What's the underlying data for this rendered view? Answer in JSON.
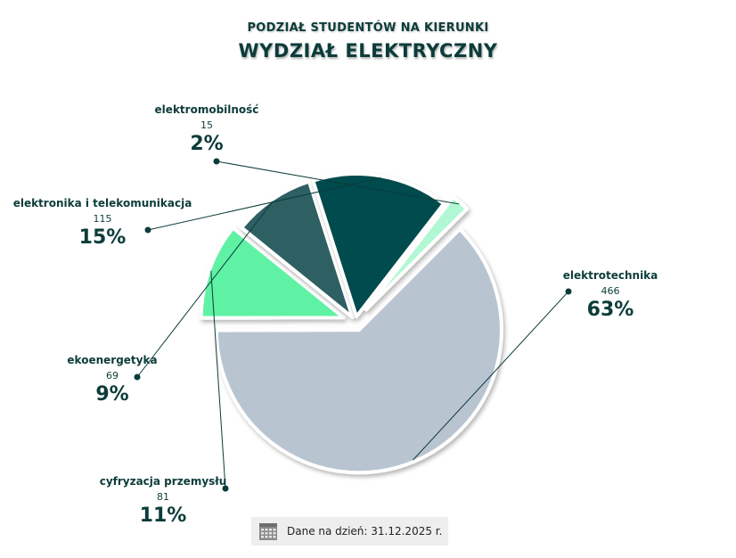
{
  "title_line1": "PODZIAŁ STUDENTÓW NA KIERUNKI",
  "title_line2": "WYDZIAŁ ELEKTRYCZNY",
  "footnote": {
    "icon": "calendar-icon",
    "text": "Dane na dzień: 31.12.2025 r."
  },
  "chart_data": {
    "type": "pie",
    "title": "PODZIAŁ STUDENTÓW NA KIERUNKI",
    "subtitle": "WYDZIAŁ ELEKTRYCZNY",
    "exploded": true,
    "slices": [
      {
        "label": "elektrotechnika",
        "value": 466,
        "percent": "63%",
        "color": "#b9c4d1"
      },
      {
        "label": "cyfryzacja przemysłu",
        "value": 81,
        "percent": "11%",
        "color": "#5ef2a4"
      },
      {
        "label": "ekoenergetyka",
        "value": 69,
        "percent": "9%",
        "color": "#2e5f63"
      },
      {
        "label": "elektronika i telekomunikacja",
        "value": 115,
        "percent": "15%",
        "color": "#064b4e"
      },
      {
        "label": "elektromobilność",
        "value": 15,
        "percent": "2%",
        "color": "#b2f7d3"
      }
    ]
  }
}
